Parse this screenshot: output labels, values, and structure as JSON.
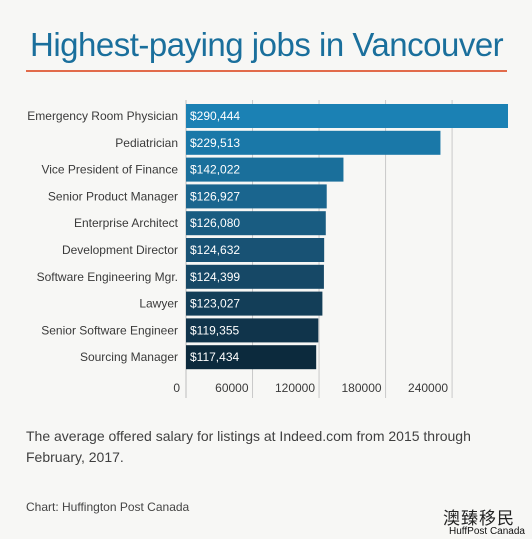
{
  "chart_data": {
    "type": "bar",
    "orientation": "horizontal",
    "title": "Highest-paying jobs in Vancouver",
    "categories": [
      "Emergency Room Physician",
      "Pediatrician",
      "Vice President of Finance",
      "Senior Product Manager",
      "Enterprise Architect",
      "Development Director",
      "Software Engineering Mgr.",
      "Lawyer",
      "Senior Software Engineer",
      "Sourcing Manager"
    ],
    "values": [
      290444,
      229513,
      142022,
      126927,
      126080,
      124632,
      124399,
      123027,
      119355,
      117434
    ],
    "value_labels": [
      "$290,444",
      "$229,513",
      "$142,022",
      "$126,927",
      "$126,080",
      "$124,632",
      "$124,399",
      "$123,027",
      "$119,355",
      "$117,434"
    ],
    "xticks": [
      "0",
      "60000",
      "120000",
      "180000",
      "240000"
    ],
    "xtick_values": [
      0,
      60000,
      120000,
      180000,
      240000
    ],
    "xlim": [
      0,
      290444
    ],
    "bar_colors": [
      "#1b81b4",
      "#1a78a8",
      "#1a6f9b",
      "#1a658e",
      "#195c81",
      "#185274",
      "#164866",
      "#133e58",
      "#10344b",
      "#0c2a3d"
    ],
    "grid": "vertical",
    "xlabel": "",
    "ylabel": ""
  },
  "caption": "The average offered salary for listings at Indeed.com from 2015 through February, 2017.",
  "credit": "Chart: Huffington Post Canada",
  "watermark": {
    "chinese": "澳臻移民",
    "english": "HuffPost Canada"
  },
  "colors": {
    "title": "#1a6f9c",
    "accent_rule": "#e26b4b",
    "gridline": "#c9c9c9",
    "background": "#f7f7f5"
  }
}
